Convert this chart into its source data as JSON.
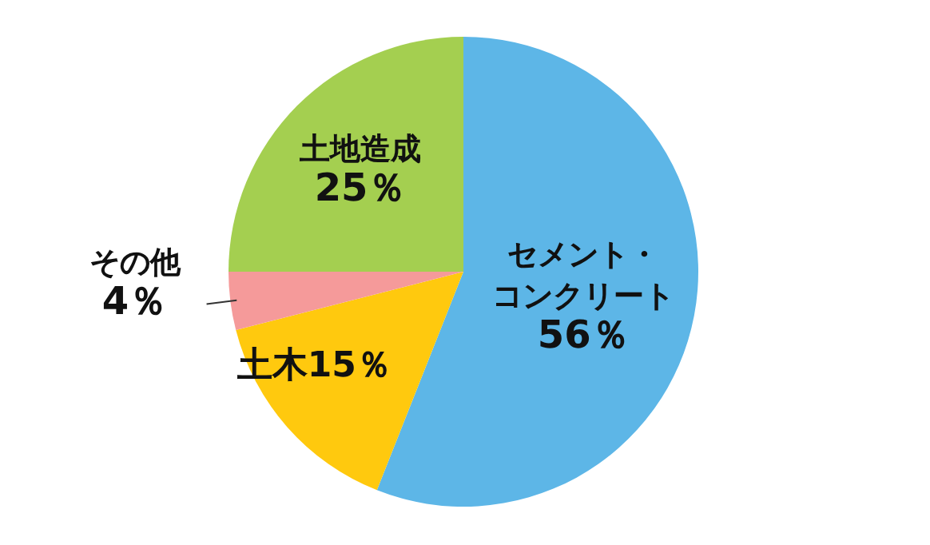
{
  "chart_data": {
    "type": "pie",
    "categories": [
      "セメント・コンクリート",
      "土木",
      "その他",
      "土地造成"
    ],
    "values": [
      56,
      15,
      4,
      25
    ],
    "value_labels": [
      "56％",
      "15％",
      "4％",
      "25％"
    ],
    "colors": [
      "#5db6e7",
      "#ffc90e",
      "#f59a9a",
      "#a4cf50"
    ]
  }
}
